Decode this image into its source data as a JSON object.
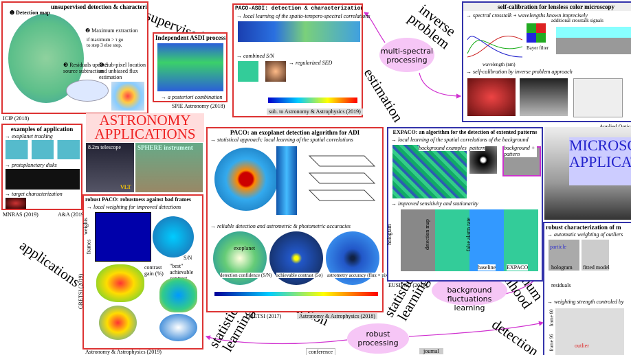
{
  "topic_labels": {
    "unsupervised": "unsupervised",
    "inverse_problem": "inverse problem",
    "estimation": "estimation",
    "applications": "applications",
    "statistical_learning_1": "statistical learning",
    "detection_1": "detection",
    "statistical_learning_2": "statistical learning",
    "maximum_likelihood": "maximum likelihood",
    "detection_2": "detection"
  },
  "bubbles": {
    "multi_spectral": "multi-spectral processing",
    "background": "background fluctuations learning",
    "robust": "robust processing"
  },
  "headings": {
    "astronomy": "ASTRONOMY APPLICATIONS",
    "microscopy": "MICROSCOPY APPLICATIONS"
  },
  "legend": {
    "conference": "conference",
    "journal": "journal"
  },
  "panels": [
    {
      "title": "unsupervised detection & characterization",
      "items": [
        "❶ Detection map",
        "❷ Maximum extraction",
        "if maximum > τ go to step 3 else stop.",
        "❸ Residuals update: source subtraction",
        "❹ Sub-pixel location and unbiased flux estimation"
      ],
      "caption": "ICIP (2018)"
    },
    {
      "title": "Independent ASDI processing",
      "items": [
        "→ a posteriori combination"
      ],
      "caption": "SPIE Astronomy (2018)"
    },
    {
      "title": "PACO-ASDI: detection & characterization algorithm",
      "items": [
        "→ local learning of the spatio-tempero-spectral correlations",
        "→ combined S/N",
        "→ regularized SED"
      ],
      "caption": "sub. to Astronomy & Astrophysics (2019)"
    },
    {
      "title": "self-calibration for lensless color microscopy",
      "items": [
        "→ spectral crosstalk + wavelengths known imprecisely",
        "wavelength (nm)",
        "Bayer filter",
        "additional crosstalk signals",
        "→ self-calibration by inverse problem approach"
      ],
      "caption": "Applied Optics"
    },
    {
      "title": "examples of application",
      "items": [
        "→ exoplanet tracking",
        "→ protoplanetary disks",
        "→ target characterization"
      ],
      "captions": [
        "MNRAS (2019)",
        "A&A (2019)"
      ]
    },
    {
      "items": [
        "8.2m telescope",
        "SPHERE instrument",
        "VLT"
      ]
    },
    {
      "title": "robust PACO: robustness against bad frames",
      "items": [
        "→ local weighting for improved detections",
        "weights",
        "frames",
        "S/N",
        "contrast gain (%)",
        "\"best\" achievable contrast"
      ],
      "captions": [
        "GRETSI (2019)",
        "Astronomy & Astrophysics (2019)"
      ]
    },
    {
      "title": "PACO: an exoplanet detection algorithm for ADI",
      "items": [
        "→ statistical approach: local learning of the spatial correlations",
        "→ reliable detection and astrometric & photometric accuracies",
        "exoplanet",
        "detection confidence (S/N)",
        "achievable contrast (5σ)",
        "astrometry accuracy (flux × pix.)"
      ],
      "captions": [
        "GRETSI (2017)",
        "Astronomy & Astrophysics (2018)"
      ]
    },
    {
      "title": "EXPACO: an algorithm for the detection of extented patterns",
      "items": [
        "→ local learning of the spatial correlations of the background",
        "background examples",
        "pattern",
        "background + pattern",
        "→ improved sensitivity and stationarity",
        "hologram",
        "detection map",
        "false alarm rate",
        "baseline",
        "EXPACO"
      ],
      "caption": "EUSIPCO (2019)"
    },
    {
      "title": "robust characterization of m",
      "items": [
        "→ automatic weighting of outliers",
        "particle",
        "hologram",
        "fitted model",
        "residuals",
        "→ weighting strength controled by",
        "frame 60",
        "frame 96",
        "outlier"
      ]
    }
  ]
}
